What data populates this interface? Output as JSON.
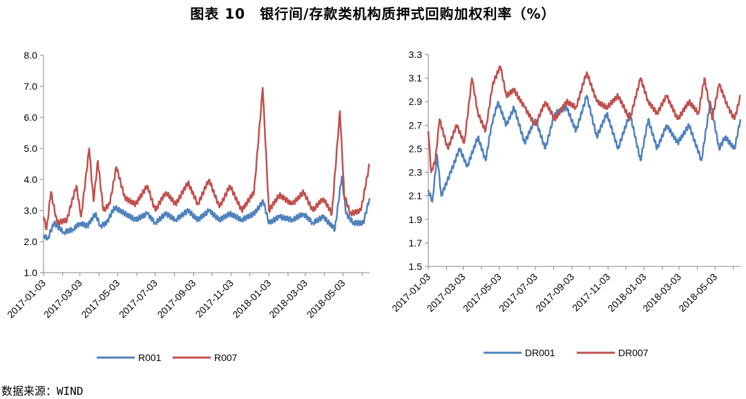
{
  "title": "图表 10　银行间/存款类机构质押式回购加权利率（%）",
  "source": "数据来源：WIND",
  "colors": {
    "blue": "#4f81bd",
    "red": "#c0504d",
    "axis": "#868686"
  },
  "chart_data": [
    {
      "type": "line",
      "x_type": "date",
      "xlim": [
        "2017-01-03",
        "2018-06-15"
      ],
      "ylim": [
        1.0,
        8.0
      ],
      "yticks": [
        "1.0",
        "2.0",
        "3.0",
        "4.0",
        "5.0",
        "6.0",
        "7.0",
        "8.0"
      ],
      "xticks": [
        "2017-01-03",
        "2017-03-03",
        "2017-05-03",
        "2017-07-03",
        "2017-09-03",
        "2017-11-03",
        "2018-01-03",
        "2018-03-03",
        "2018-05-03"
      ],
      "grid": false,
      "legend": "bottom",
      "series": [
        {
          "name": "R001",
          "color": "#4f81bd",
          "points": [
            [
              "2017-01-03",
              2.2
            ],
            [
              "2017-01-10",
              2.1
            ],
            [
              "2017-01-20",
              2.6
            ],
            [
              "2017-02-05",
              2.3
            ],
            [
              "2017-02-20",
              2.4
            ],
            [
              "2017-03-03",
              2.6
            ],
            [
              "2017-03-15",
              2.5
            ],
            [
              "2017-03-28",
              2.9
            ],
            [
              "2017-04-05",
              2.5
            ],
            [
              "2017-04-15",
              2.6
            ],
            [
              "2017-04-28",
              3.1
            ],
            [
              "2017-05-15",
              2.9
            ],
            [
              "2017-06-01",
              2.7
            ],
            [
              "2017-06-20",
              2.9
            ],
            [
              "2017-07-03",
              2.6
            ],
            [
              "2017-07-20",
              2.9
            ],
            [
              "2017-08-05",
              2.7
            ],
            [
              "2017-08-25",
              3.0
            ],
            [
              "2017-09-10",
              2.7
            ],
            [
              "2017-09-28",
              3.0
            ],
            [
              "2017-10-15",
              2.7
            ],
            [
              "2017-11-01",
              2.9
            ],
            [
              "2017-11-20",
              2.7
            ],
            [
              "2017-12-10",
              2.9
            ],
            [
              "2017-12-25",
              3.3
            ],
            [
              "2018-01-03",
              2.6
            ],
            [
              "2018-01-20",
              2.8
            ],
            [
              "2018-02-10",
              2.7
            ],
            [
              "2018-02-28",
              2.9
            ],
            [
              "2018-03-15",
              2.6
            ],
            [
              "2018-04-01",
              2.8
            ],
            [
              "2018-04-20",
              2.4
            ],
            [
              "2018-05-01",
              4.1
            ],
            [
              "2018-05-08",
              2.9
            ],
            [
              "2018-05-20",
              2.6
            ],
            [
              "2018-06-05",
              2.6
            ],
            [
              "2018-06-15",
              3.4
            ]
          ]
        },
        {
          "name": "R007",
          "color": "#c0504d",
          "points": [
            [
              "2017-01-03",
              2.8
            ],
            [
              "2017-01-08",
              2.4
            ],
            [
              "2017-01-15",
              3.6
            ],
            [
              "2017-01-25",
              2.6
            ],
            [
              "2017-02-10",
              2.7
            ],
            [
              "2017-02-25",
              3.8
            ],
            [
              "2017-03-05",
              2.8
            ],
            [
              "2017-03-18",
              5.0
            ],
            [
              "2017-03-25",
              3.3
            ],
            [
              "2017-04-01",
              4.6
            ],
            [
              "2017-04-10",
              3.0
            ],
            [
              "2017-04-20",
              3.2
            ],
            [
              "2017-05-01",
              4.4
            ],
            [
              "2017-05-15",
              3.4
            ],
            [
              "2017-06-01",
              3.2
            ],
            [
              "2017-06-20",
              3.8
            ],
            [
              "2017-07-03",
              3.0
            ],
            [
              "2017-07-20",
              3.6
            ],
            [
              "2017-08-05",
              3.2
            ],
            [
              "2017-08-25",
              3.9
            ],
            [
              "2017-09-10",
              3.2
            ],
            [
              "2017-09-28",
              4.0
            ],
            [
              "2017-10-15",
              3.1
            ],
            [
              "2017-11-01",
              3.8
            ],
            [
              "2017-11-20",
              3.0
            ],
            [
              "2017-12-10",
              3.6
            ],
            [
              "2017-12-24",
              6.95
            ],
            [
              "2018-01-03",
              3.0
            ],
            [
              "2018-01-20",
              3.5
            ],
            [
              "2018-02-10",
              3.2
            ],
            [
              "2018-02-28",
              3.6
            ],
            [
              "2018-03-15",
              3.0
            ],
            [
              "2018-04-01",
              3.4
            ],
            [
              "2018-04-15",
              2.9
            ],
            [
              "2018-04-28",
              6.2
            ],
            [
              "2018-05-05",
              3.5
            ],
            [
              "2018-05-15",
              2.9
            ],
            [
              "2018-06-01",
              3.0
            ],
            [
              "2018-06-15",
              4.5
            ]
          ]
        }
      ]
    },
    {
      "type": "line",
      "x_type": "date",
      "xlim": [
        "2017-01-03",
        "2018-06-15"
      ],
      "ylim": [
        1.5,
        3.3
      ],
      "yticks": [
        "1.5",
        "1.7",
        "1.9",
        "2.1",
        "2.3",
        "2.5",
        "2.7",
        "2.9",
        "3.1",
        "3.3"
      ],
      "xticks": [
        "2017-01-03",
        "2017-03-03",
        "2017-05-03",
        "2017-07-03",
        "2017-09-03",
        "2017-11-03",
        "2018-01-03",
        "2018-03-03",
        "2018-05-03"
      ],
      "grid": false,
      "legend": "bottom",
      "series": [
        {
          "name": "DR001",
          "color": "#4f81bd",
          "points": [
            [
              "2017-01-03",
              2.15
            ],
            [
              "2017-01-10",
              2.05
            ],
            [
              "2017-01-18",
              2.45
            ],
            [
              "2017-01-25",
              2.1
            ],
            [
              "2017-02-10",
              2.3
            ],
            [
              "2017-02-25",
              2.5
            ],
            [
              "2017-03-10",
              2.35
            ],
            [
              "2017-03-28",
              2.6
            ],
            [
              "2017-04-10",
              2.4
            ],
            [
              "2017-04-20",
              2.7
            ],
            [
              "2017-05-01",
              2.9
            ],
            [
              "2017-05-15",
              2.7
            ],
            [
              "2017-05-28",
              2.85
            ],
            [
              "2017-06-15",
              2.55
            ],
            [
              "2017-07-03",
              2.75
            ],
            [
              "2017-07-20",
              2.5
            ],
            [
              "2017-08-05",
              2.8
            ],
            [
              "2017-08-25",
              2.85
            ],
            [
              "2017-09-10",
              2.65
            ],
            [
              "2017-09-28",
              2.95
            ],
            [
              "2017-10-15",
              2.6
            ],
            [
              "2017-11-01",
              2.8
            ],
            [
              "2017-11-20",
              2.5
            ],
            [
              "2017-12-10",
              2.8
            ],
            [
              "2017-12-28",
              2.4
            ],
            [
              "2018-01-10",
              2.75
            ],
            [
              "2018-01-25",
              2.5
            ],
            [
              "2018-02-10",
              2.7
            ],
            [
              "2018-03-01",
              2.55
            ],
            [
              "2018-03-20",
              2.7
            ],
            [
              "2018-04-10",
              2.4
            ],
            [
              "2018-04-25",
              2.9
            ],
            [
              "2018-05-10",
              2.5
            ],
            [
              "2018-05-20",
              2.6
            ],
            [
              "2018-06-05",
              2.5
            ],
            [
              "2018-06-15",
              2.75
            ]
          ]
        },
        {
          "name": "DR007",
          "color": "#c0504d",
          "points": [
            [
              "2017-01-03",
              2.65
            ],
            [
              "2017-01-08",
              2.3
            ],
            [
              "2017-01-15",
              2.4
            ],
            [
              "2017-01-22",
              2.75
            ],
            [
              "2017-02-05",
              2.5
            ],
            [
              "2017-02-20",
              2.7
            ],
            [
              "2017-03-05",
              2.55
            ],
            [
              "2017-03-18",
              3.1
            ],
            [
              "2017-03-28",
              2.8
            ],
            [
              "2017-04-10",
              2.65
            ],
            [
              "2017-04-22",
              3.05
            ],
            [
              "2017-05-05",
              3.2
            ],
            [
              "2017-05-15",
              2.95
            ],
            [
              "2017-05-28",
              3.0
            ],
            [
              "2017-06-15",
              2.85
            ],
            [
              "2017-07-03",
              2.7
            ],
            [
              "2017-07-20",
              2.9
            ],
            [
              "2017-08-05",
              2.75
            ],
            [
              "2017-08-25",
              2.9
            ],
            [
              "2017-09-10",
              2.85
            ],
            [
              "2017-09-28",
              3.15
            ],
            [
              "2017-10-15",
              2.9
            ],
            [
              "2017-11-01",
              2.85
            ],
            [
              "2017-11-20",
              2.95
            ],
            [
              "2017-12-10",
              2.75
            ],
            [
              "2017-12-28",
              3.1
            ],
            [
              "2018-01-10",
              2.9
            ],
            [
              "2018-01-25",
              2.8
            ],
            [
              "2018-02-10",
              2.95
            ],
            [
              "2018-03-01",
              2.75
            ],
            [
              "2018-03-20",
              2.9
            ],
            [
              "2018-04-05",
              2.8
            ],
            [
              "2018-04-15",
              3.1
            ],
            [
              "2018-04-28",
              2.75
            ],
            [
              "2018-05-10",
              3.05
            ],
            [
              "2018-05-25",
              2.85
            ],
            [
              "2018-06-05",
              2.75
            ],
            [
              "2018-06-15",
              2.95
            ]
          ]
        }
      ]
    }
  ]
}
